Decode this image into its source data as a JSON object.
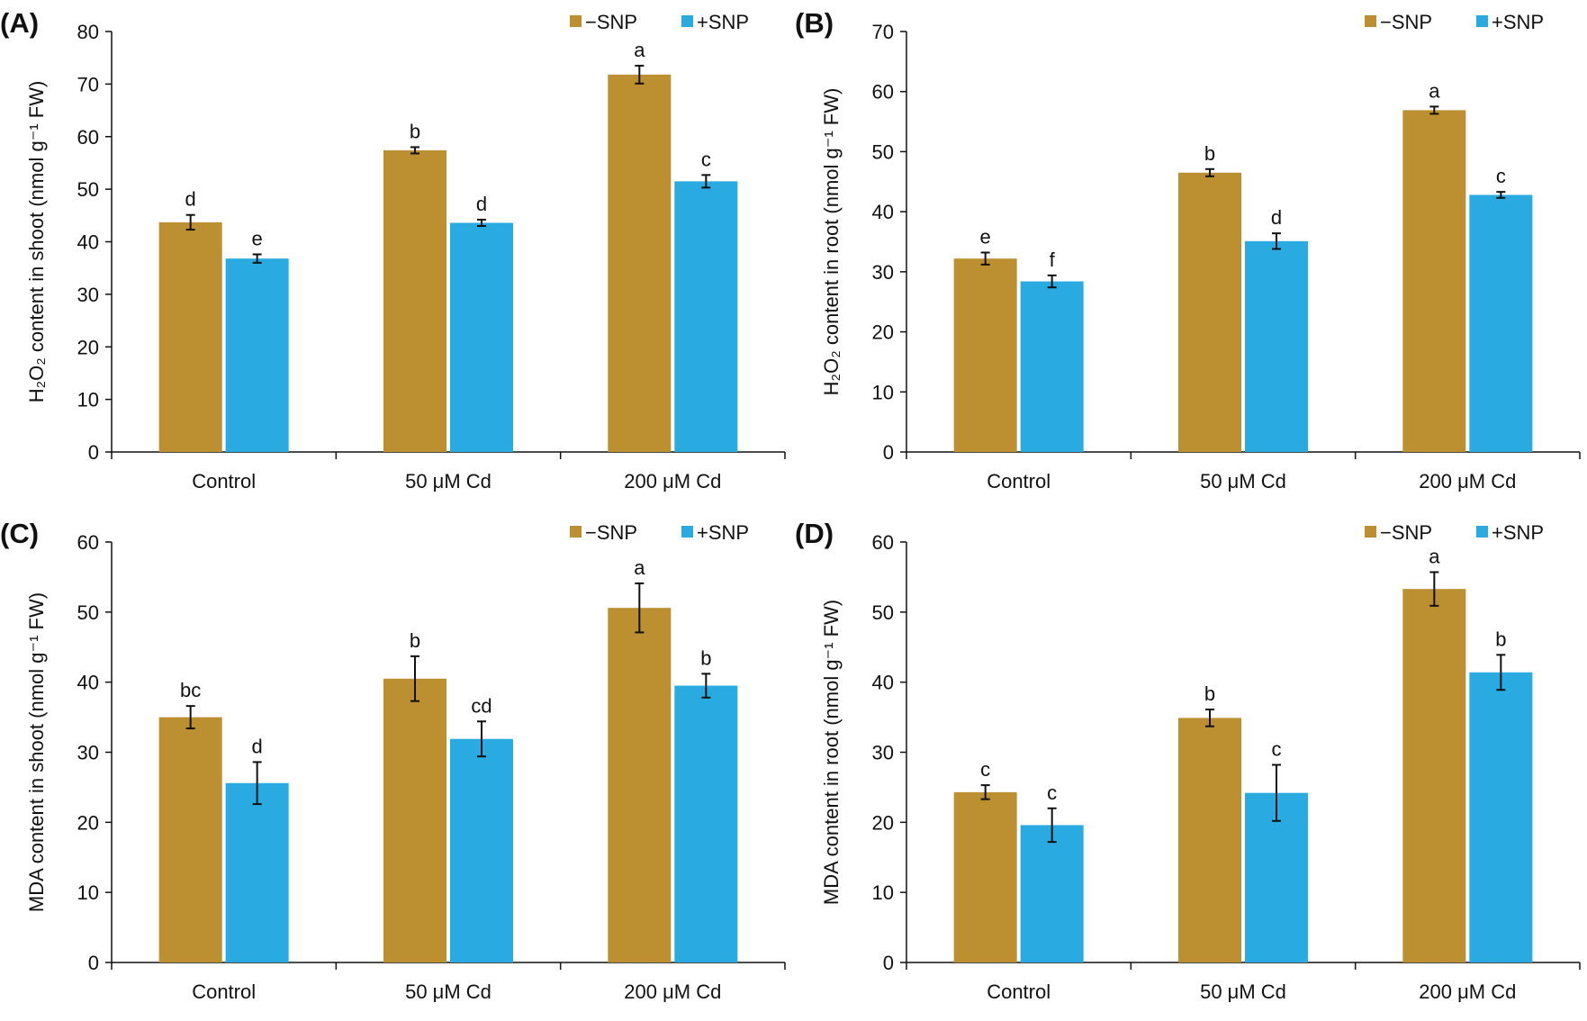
{
  "colors": {
    "minus_snp": "#BC8F31",
    "plus_snp": "#29ABE2"
  },
  "chart_data": [
    {
      "type": "bar",
      "panel_label": "(A)",
      "ylabel": "H₂O₂ content in shoot (nmol g⁻¹ FW)",
      "ylim": [
        0,
        80
      ],
      "yticks": [
        0,
        10,
        20,
        30,
        40,
        50,
        60,
        70,
        80
      ],
      "categories": [
        "Control",
        "50 μM Cd",
        "200 μM Cd"
      ],
      "legend": [
        "−SNP",
        "+SNP"
      ],
      "legend_position": "top-right",
      "series": [
        {
          "name": "−SNP",
          "values": [
            43.7,
            57.4,
            71.8
          ],
          "errors": [
            1.4,
            0.6,
            1.7
          ],
          "letters": [
            "d",
            "b",
            "a"
          ]
        },
        {
          "name": "+SNP",
          "values": [
            36.8,
            43.6,
            51.5
          ],
          "errors": [
            0.8,
            0.6,
            1.2
          ],
          "letters": [
            "e",
            "d",
            "c"
          ]
        }
      ]
    },
    {
      "type": "bar",
      "panel_label": "(B)",
      "ylabel": "H₂O₂ content in root (nmol g⁻¹ FW)",
      "ylim": [
        0,
        70
      ],
      "yticks": [
        0,
        10,
        20,
        30,
        40,
        50,
        60,
        70
      ],
      "categories": [
        "Control",
        "50 μM Cd",
        "200 μM Cd"
      ],
      "legend": [
        "−SNP",
        "+SNP"
      ],
      "legend_position": "top-right",
      "series": [
        {
          "name": "−SNP",
          "values": [
            32.2,
            46.5,
            56.9
          ],
          "errors": [
            1.0,
            0.6,
            0.6
          ],
          "letters": [
            "e",
            "b",
            "a"
          ]
        },
        {
          "name": "+SNP",
          "values": [
            28.4,
            35.1,
            42.8
          ],
          "errors": [
            1.0,
            1.3,
            0.5
          ],
          "letters": [
            "f",
            "d",
            "c"
          ]
        }
      ]
    },
    {
      "type": "bar",
      "panel_label": "(C)",
      "ylabel": "MDA content in shoot (nmol g⁻¹ FW)",
      "ylim": [
        0,
        60
      ],
      "yticks": [
        0,
        10,
        20,
        30,
        40,
        50,
        60
      ],
      "categories": [
        "Control",
        "50 μM Cd",
        "200 μM Cd"
      ],
      "legend": [
        "−SNP",
        "+SNP"
      ],
      "legend_position": "top-right",
      "series": [
        {
          "name": "−SNP",
          "values": [
            35.0,
            40.5,
            50.6
          ],
          "errors": [
            1.6,
            3.2,
            3.5
          ],
          "letters": [
            "bc",
            "b",
            "a"
          ]
        },
        {
          "name": "+SNP",
          "values": [
            25.6,
            31.9,
            39.5
          ],
          "errors": [
            3.0,
            2.5,
            1.7
          ],
          "letters": [
            "d",
            "cd",
            "b"
          ]
        }
      ]
    },
    {
      "type": "bar",
      "panel_label": "(D)",
      "ylabel": "MDA content in root (nmol g⁻¹ FW)",
      "ylim": [
        0,
        60
      ],
      "yticks": [
        0,
        10,
        20,
        30,
        40,
        50,
        60
      ],
      "categories": [
        "Control",
        "50 μM Cd",
        "200 μM Cd"
      ],
      "legend": [
        "−SNP",
        "+SNP"
      ],
      "legend_position": "top-right",
      "series": [
        {
          "name": "−SNP",
          "values": [
            24.3,
            34.9,
            53.3
          ],
          "errors": [
            1.0,
            1.2,
            2.4
          ],
          "letters": [
            "c",
            "b",
            "a"
          ]
        },
        {
          "name": "+SNP",
          "values": [
            19.6,
            24.2,
            41.4
          ],
          "errors": [
            2.4,
            4.0,
            2.5
          ],
          "letters": [
            "c",
            "c",
            "b"
          ]
        }
      ]
    }
  ]
}
